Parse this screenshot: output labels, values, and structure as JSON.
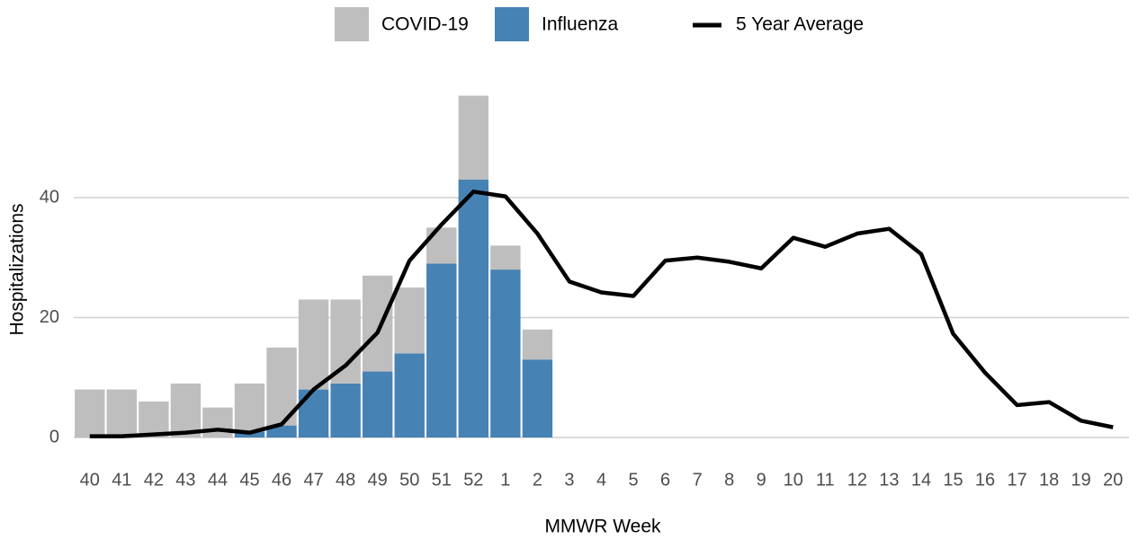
{
  "chart_data": {
    "type": "bar",
    "stacked": true,
    "x_label": "MMWR Week",
    "y_label": "Hospitalizations",
    "categories": [
      "40",
      "41",
      "42",
      "43",
      "44",
      "45",
      "46",
      "47",
      "48",
      "49",
      "50",
      "51",
      "52",
      "1",
      "2",
      "3",
      "4",
      "5",
      "6",
      "7",
      "8",
      "9",
      "10",
      "11",
      "12",
      "13",
      "14",
      "15",
      "16",
      "17",
      "18",
      "19",
      "20"
    ],
    "series": [
      {
        "name": "COVID-19",
        "color": "#bebebe",
        "values": [
          8,
          8,
          6,
          9,
          5,
          8,
          13,
          15,
          14,
          16,
          11,
          6,
          14,
          4,
          5,
          null,
          null,
          null,
          null,
          null,
          null,
          null,
          null,
          null,
          null,
          null,
          null,
          null,
          null,
          null,
          null,
          null,
          null
        ]
      },
      {
        "name": "Influenza",
        "color": "#4682b4",
        "values": [
          0,
          0,
          0,
          0,
          0,
          1,
          2,
          8,
          9,
          11,
          14,
          29,
          43,
          28,
          13,
          null,
          null,
          null,
          null,
          null,
          null,
          null,
          null,
          null,
          null,
          null,
          null,
          null,
          null,
          null,
          null,
          null,
          null
        ]
      },
      {
        "name": "5 Year Average",
        "color": "#000000",
        "type": "line",
        "values": [
          0.2,
          0.2,
          0.5,
          0.8,
          1.3,
          0.8,
          2.2,
          8,
          12,
          17.5,
          29.5,
          35.5,
          41,
          40.2,
          34,
          26,
          24.2,
          23.6,
          29.5,
          30,
          29.3,
          28.2,
          33.3,
          31.8,
          34,
          34.8,
          30.6,
          17.3,
          10.8,
          5.4,
          5.9,
          2.8,
          1.7
        ]
      }
    ],
    "ylim": [
      -1.5,
      58.5
    ],
    "yticks": [
      0,
      20,
      40
    ],
    "grid": true,
    "legend": "top"
  }
}
